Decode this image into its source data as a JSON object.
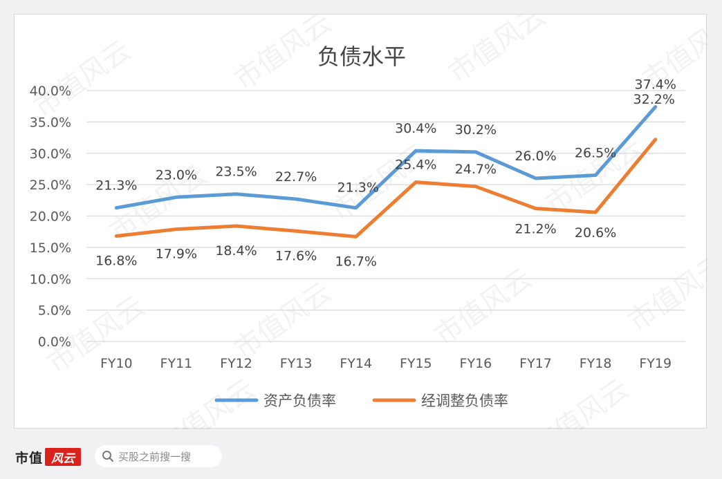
{
  "chart_data": {
    "type": "line",
    "title": "负债水平",
    "categories": [
      "FY10",
      "FY11",
      "FY12",
      "FY13",
      "FY14",
      "FY15",
      "FY16",
      "FY17",
      "FY18",
      "FY19"
    ],
    "ylim": [
      0,
      40
    ],
    "yticks": [
      "0.0%",
      "5.0%",
      "10.0%",
      "15.0%",
      "20.0%",
      "25.0%",
      "30.0%",
      "35.0%",
      "40.0%"
    ],
    "grid": true,
    "legend_position": "bottom",
    "series": [
      {
        "name": "资产负债率",
        "color": "#5b9bd5",
        "values": [
          21.3,
          23.0,
          23.5,
          22.7,
          21.3,
          30.4,
          30.2,
          26.0,
          26.5,
          37.4
        ],
        "labels": [
          "21.3%",
          "23.0%",
          "23.5%",
          "22.7%",
          "21.3%",
          "30.4%",
          "30.2%",
          "26.0%",
          "26.5%",
          "37.4%"
        ]
      },
      {
        "name": "经调整负债率",
        "color": "#ed7d31",
        "values": [
          16.8,
          17.9,
          18.4,
          17.6,
          16.7,
          25.4,
          24.7,
          21.2,
          20.6,
          32.2
        ],
        "labels": [
          "16.8%",
          "17.9%",
          "18.4%",
          "17.6%",
          "16.7%",
          "25.4%",
          "24.7%",
          "21.2%",
          "20.6%",
          "32.2%"
        ]
      }
    ]
  },
  "watermark": "市值风云",
  "footer": {
    "brand": "市值",
    "brand_mark": "风云",
    "search_placeholder": "买股之前搜一搜",
    "search_icon": "search-icon"
  }
}
